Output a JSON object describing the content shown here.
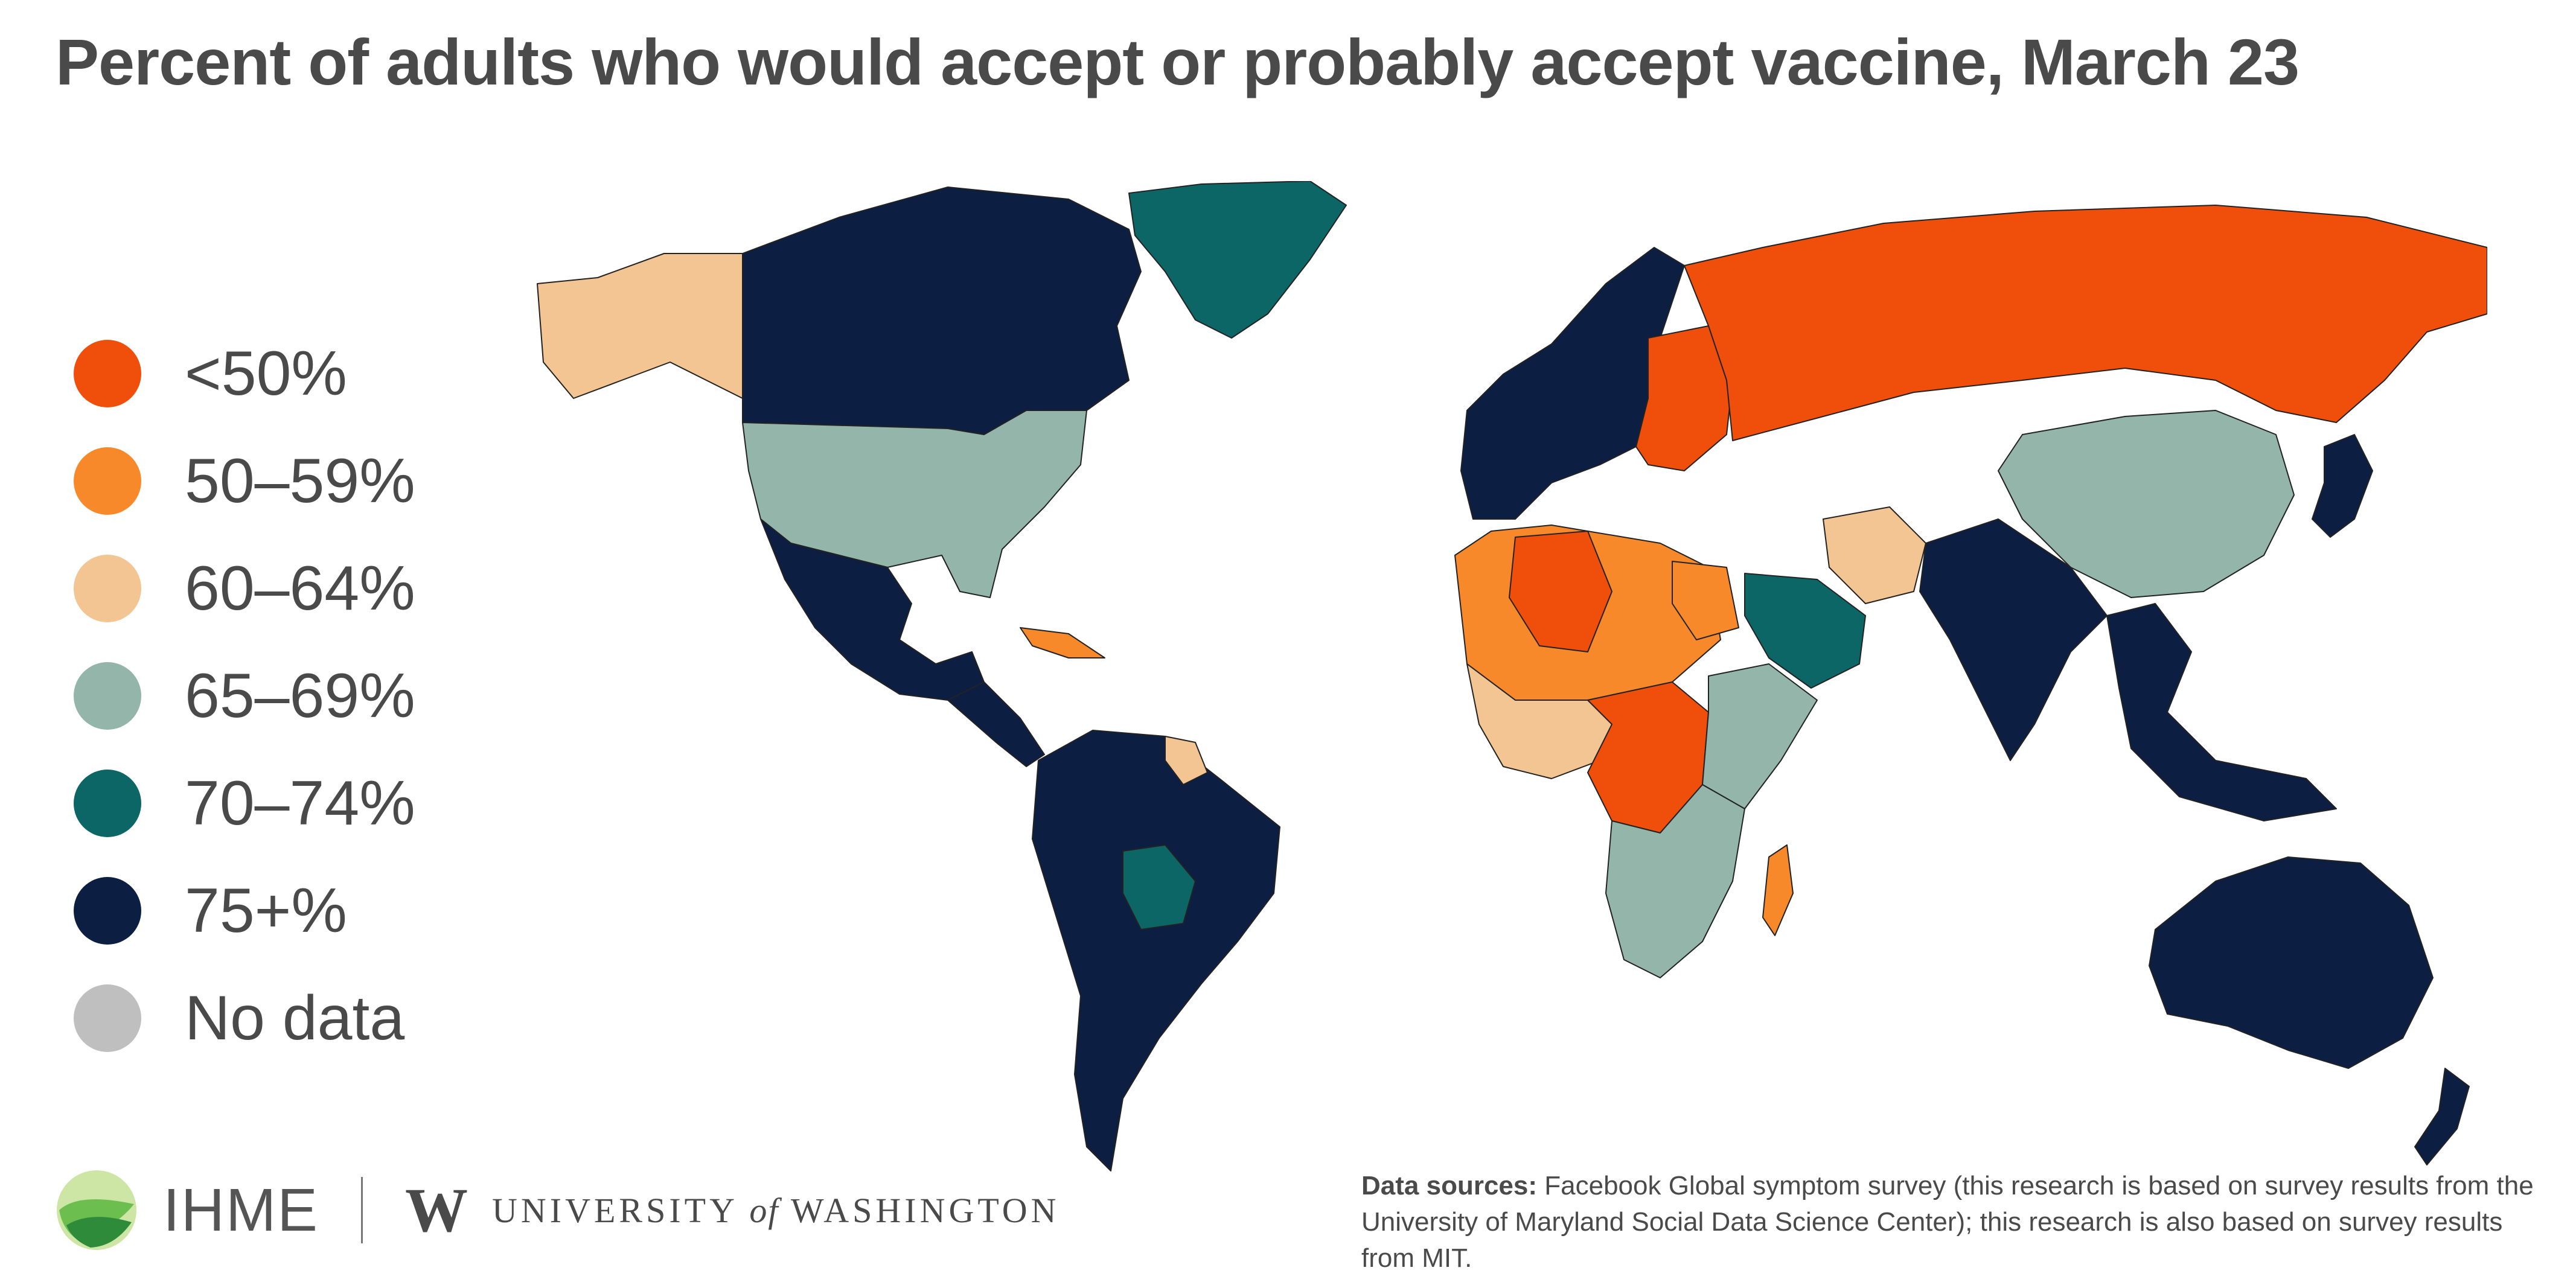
{
  "title": "Percent of adults who would accept or probably accept vaccine, March 23",
  "legend": {
    "items": [
      {
        "label": "<50%",
        "color": "#f04e0b"
      },
      {
        "label": "50–59%",
        "color": "#f7892a"
      },
      {
        "label": "60–64%",
        "color": "#f3c592"
      },
      {
        "label": "65–69%",
        "color": "#93b5aa"
      },
      {
        "label": "70–74%",
        "color": "#0c6666"
      },
      {
        "label": "75+%",
        "color": "#0c1f42"
      },
      {
        "label": "No data",
        "color": "#bfbfbf"
      }
    ]
  },
  "footer": {
    "ihme_label": "IHME",
    "uw_letter": "W",
    "uw_university": "UNIVERSITY",
    "uw_of": "of",
    "uw_washington": "WASHINGTON",
    "sources_label": "Data sources:",
    "sources_text": "Facebook Global symptom survey (this research is based on survey results from the University of Maryland Social Data Science Center); this research is also based on survey results from MIT."
  },
  "regions": [
    {
      "name": "Alaska",
      "category": "60–64%"
    },
    {
      "name": "Canada",
      "category": "75+%"
    },
    {
      "name": "Greenland",
      "category": "70–74%"
    },
    {
      "name": "United States",
      "category": "65–69%"
    },
    {
      "name": "Mexico",
      "category": "75+%"
    },
    {
      "name": "Central America",
      "category": "75+%"
    },
    {
      "name": "Caribbean",
      "category": "50–59%"
    },
    {
      "name": "South America",
      "category": "75+%"
    },
    {
      "name": "Bolivia",
      "category": "70–74%"
    },
    {
      "name": "Guyana",
      "category": "60–64%"
    },
    {
      "name": "Western Europe",
      "category": "75+%"
    },
    {
      "name": "Eastern Europe",
      "category": "<50%"
    },
    {
      "name": "Russia",
      "category": "<50%"
    },
    {
      "name": "North Africa",
      "category": "50–59%"
    },
    {
      "name": "Algeria",
      "category": "<50%"
    },
    {
      "name": "Egypt",
      "category": "50–59%"
    },
    {
      "name": "Saudi Arabia",
      "category": "70–74%"
    },
    {
      "name": "Iran",
      "category": "60–64%"
    },
    {
      "name": "West Africa",
      "category": "60–64%"
    },
    {
      "name": "Central Africa",
      "category": "<50%"
    },
    {
      "name": "East Africa",
      "category": "65–69%"
    },
    {
      "name": "Southern Africa",
      "category": "65–69%"
    },
    {
      "name": "Madagascar",
      "category": "50–59%"
    },
    {
      "name": "China",
      "category": "65–69%"
    },
    {
      "name": "India",
      "category": "75+%"
    },
    {
      "name": "Southeast Asia",
      "category": "75+%"
    },
    {
      "name": "Japan",
      "category": "75+%"
    },
    {
      "name": "Australia",
      "category": "75+%"
    },
    {
      "name": "New Zealand",
      "category": "75+%"
    }
  ]
}
